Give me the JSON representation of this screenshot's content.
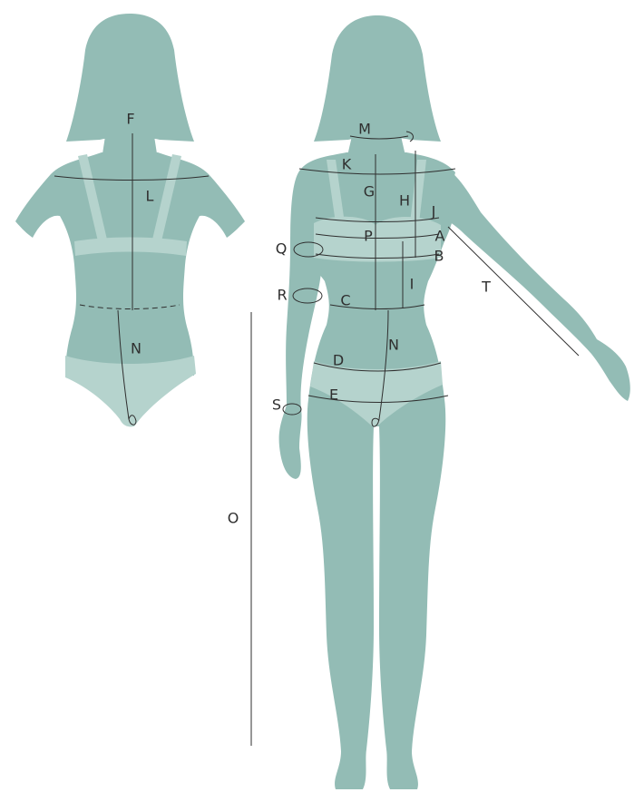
{
  "diagram": {
    "colors": {
      "body": "#93bcb5",
      "underwear": "#b5d3cd",
      "lines": "#2f2f2f",
      "text": "#2f2f2f",
      "background": "#ffffff"
    },
    "back_view": {
      "labels": {
        "F": "F",
        "L": "L",
        "N": "N"
      }
    },
    "front_view": {
      "labels": {
        "M": "M",
        "K": "K",
        "G": "G",
        "H": "H",
        "J": "J",
        "A": "A",
        "P": "P",
        "B": "B",
        "Q": "Q",
        "I": "I",
        "R": "R",
        "C": "C",
        "N": "N",
        "D": "D",
        "E": "E",
        "S": "S",
        "T": "T",
        "O": "O"
      }
    }
  }
}
